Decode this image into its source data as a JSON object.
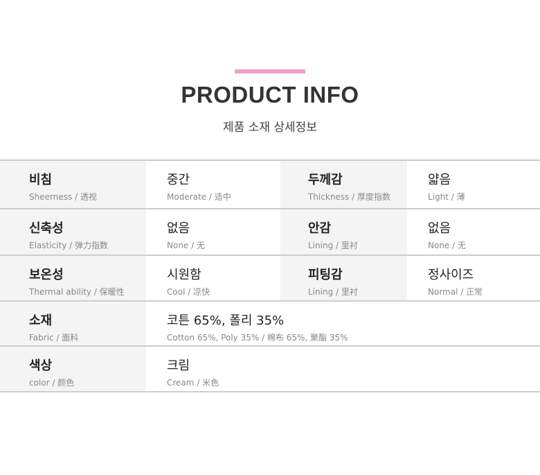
{
  "header": {
    "title": "PRODUCT INFO",
    "subtitle": "제품 소재 상세정보",
    "accent": "#f2a1c4"
  },
  "rows": [
    {
      "cells": [
        {
          "main": "비침",
          "sub": "Sheerness / 透视"
        },
        {
          "main": "중간",
          "sub": "Moderate / 适中"
        },
        {
          "main": "두께감",
          "sub": "Thickness / 厚度指数"
        },
        {
          "main": "얇음",
          "sub": "Light / 薄"
        }
      ]
    },
    {
      "cells": [
        {
          "main": "신축성",
          "sub": "Elasticity / 弹力指数"
        },
        {
          "main": "없음",
          "sub": "None / 无"
        },
        {
          "main": "안감",
          "sub": "Lining / 里衬"
        },
        {
          "main": "없음",
          "sub": "None / 无"
        }
      ]
    },
    {
      "cells": [
        {
          "main": "보온성",
          "sub": "Thermal ability / 保暖性"
        },
        {
          "main": "시원함",
          "sub": "Cool / 凉快"
        },
        {
          "main": "피팅감",
          "sub": "Lining / 里衬"
        },
        {
          "main": "정사이즈",
          "sub": "Normal / 正常"
        }
      ]
    },
    {
      "cells": [
        {
          "main": "소재",
          "sub": "Fabric / 面料"
        },
        {
          "main": "코튼 65%, 폴리 35%",
          "sub": "Cotton 65%, Poly 35% / 棉布 65%, 聚酯 35%"
        }
      ]
    },
    {
      "cells": [
        {
          "main": "색상",
          "sub": "color / 颜色"
        },
        {
          "main": "크림",
          "sub": "Cream / 米色"
        }
      ]
    }
  ]
}
